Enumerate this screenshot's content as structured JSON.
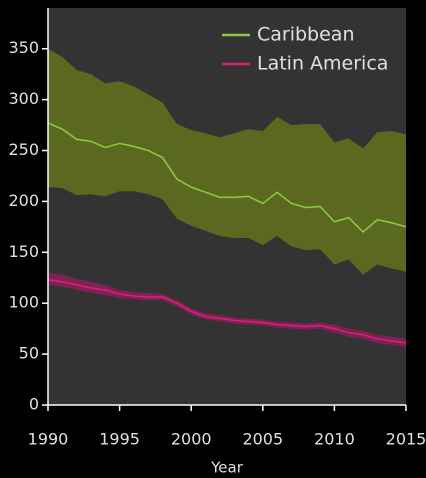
{
  "chart_data": {
    "type": "line",
    "x": [
      1990,
      1991,
      1992,
      1993,
      1994,
      1995,
      1996,
      1997,
      1998,
      1999,
      2000,
      2001,
      2002,
      2003,
      2004,
      2005,
      2006,
      2007,
      2008,
      2009,
      2010,
      2011,
      2012,
      2013,
      2014,
      2015
    ],
    "xlabel": "Year",
    "xlim": [
      1990,
      2015
    ],
    "xticks": [
      1990,
      1995,
      2000,
      2005,
      2010,
      2015
    ],
    "ylim": [
      0,
      390
    ],
    "yticks": [
      0,
      50,
      100,
      150,
      200,
      250,
      300,
      350
    ],
    "legend": "upper right",
    "series": [
      {
        "name": "Caribbean",
        "color": "#8dc63f",
        "band_color": "#5a6820",
        "values": [
          277,
          271,
          261,
          259,
          253,
          257,
          254,
          250,
          243,
          222,
          214,
          209,
          204,
          204,
          205,
          198,
          209,
          198,
          194,
          195,
          180,
          184,
          170,
          182,
          179,
          175
        ],
        "upper": [
          350,
          342,
          329,
          325,
          316,
          318,
          313,
          305,
          297,
          276,
          270,
          267,
          263,
          267,
          271,
          269,
          283,
          275,
          276,
          276,
          258,
          262,
          252,
          268,
          269,
          266
        ],
        "lower": [
          214,
          213,
          206,
          207,
          205,
          210,
          210,
          207,
          202,
          183,
          176,
          171,
          166,
          164,
          164,
          157,
          166,
          156,
          152,
          153,
          138,
          143,
          128,
          138,
          134,
          131
        ]
      },
      {
        "name": "Latin America",
        "color": "#e0197d",
        "band_color": "#7a2452",
        "values": [
          123,
          121,
          118,
          115,
          113,
          109,
          107,
          106,
          106,
          100,
          92,
          87,
          85,
          83,
          82,
          81,
          79,
          78,
          77,
          78,
          75,
          71,
          69,
          65,
          63,
          61
        ],
        "upper": [
          130,
          128,
          124,
          121,
          118,
          113,
          111,
          110,
          109,
          103,
          95,
          90,
          88,
          86,
          85,
          84,
          82,
          81,
          80,
          81,
          79,
          75,
          73,
          69,
          67,
          65
        ],
        "lower": [
          118,
          116,
          113,
          110,
          108,
          105,
          104,
          103,
          103,
          97,
          89,
          84,
          82,
          80,
          79,
          78,
          76,
          75,
          74,
          75,
          71,
          67,
          65,
          61,
          59,
          57
        ]
      }
    ]
  }
}
